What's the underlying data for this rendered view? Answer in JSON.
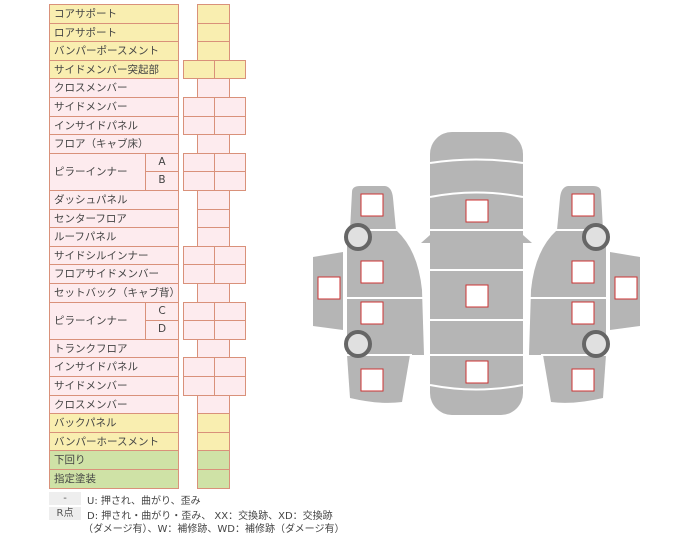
{
  "rows": [
    {
      "label": "コアサポート",
      "color": "yellow",
      "cells": 1
    },
    {
      "label": "ロアサポート",
      "color": "yellow",
      "cells": 1
    },
    {
      "label": "バンパーポースメント",
      "color": "yellow",
      "cells": 1
    },
    {
      "label": "サイドメンバー突起部",
      "color": "yellow",
      "cells": 2
    },
    {
      "label": "クロスメンバー",
      "color": "pink",
      "cells": 1
    },
    {
      "label": "サイドメンバー",
      "color": "pink",
      "cells": 2
    },
    {
      "label": "インサイドパネル",
      "color": "pink",
      "cells": 2
    },
    {
      "label": "フロア（キャブ床）",
      "color": "pink",
      "cells": 1
    },
    {
      "label": "ピラーインナー",
      "color": "pink",
      "cells": 2,
      "sub": [
        "A",
        "B"
      ]
    },
    {
      "label": "ダッシュパネル",
      "color": "pink",
      "cells": 1
    },
    {
      "label": "センターフロア",
      "color": "pink",
      "cells": 1
    },
    {
      "label": "ルーフパネル",
      "color": "pink",
      "cells": 1
    },
    {
      "label": "サイドシルインナー",
      "color": "pink",
      "cells": 2
    },
    {
      "label": "フロアサイドメンバー",
      "color": "pink",
      "cells": 2
    },
    {
      "label": "セットバック（キャブ背）",
      "color": "pink",
      "cells": 1
    },
    {
      "label": "ピラーインナー",
      "color": "pink",
      "cells": 2,
      "sub": [
        "C",
        "D"
      ]
    },
    {
      "label": "トランクフロア",
      "color": "pink",
      "cells": 1
    },
    {
      "label": "インサイドパネル",
      "color": "pink",
      "cells": 2
    },
    {
      "label": "サイドメンバー",
      "color": "pink",
      "cells": 2
    },
    {
      "label": "クロスメンバー",
      "color": "pink",
      "cells": 1
    },
    {
      "label": "バックパネル",
      "color": "yellow",
      "cells": 1
    },
    {
      "label": "バンパーホースメント",
      "color": "yellow",
      "cells": 1
    },
    {
      "label": "下回り",
      "color": "green",
      "cells": 1
    },
    {
      "label": "指定塗装",
      "color": "green",
      "cells": 1
    }
  ],
  "legend": {
    "dash_key": "-",
    "dash_text": "U: 押され、曲がり、歪み",
    "r_key": "R点",
    "r_text1": "D: 押され・曲がり・歪み、 XX：交換跡、XD：交換跡",
    "r_text2": "（ダメージ有）、W：補修跡、WD：補修跡（ダメージ有）"
  },
  "colors": {
    "body": "#b5b5b5",
    "marker": "#cc3333",
    "border": "#d9917a"
  }
}
